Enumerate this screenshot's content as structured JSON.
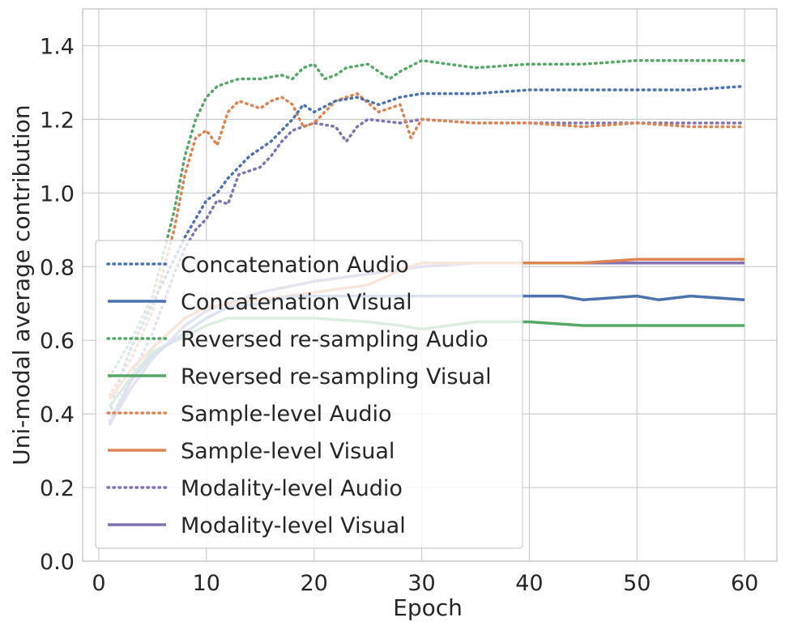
{
  "chart_data": {
    "type": "line",
    "title": "",
    "xlabel": "Epoch",
    "ylabel": "Uni-modal average contribution",
    "xlim": [
      -1.5,
      63
    ],
    "ylim": [
      0.0,
      1.5
    ],
    "xticks": [
      "0",
      "10",
      "20",
      "30",
      "40",
      "50",
      "60"
    ],
    "yticks": [
      "0.0",
      "0.2",
      "0.4",
      "0.6",
      "0.8",
      "1.0",
      "1.2",
      "1.4"
    ],
    "grid": true,
    "legend_position": "lower-left",
    "series": [
      {
        "name": "Concatenation Audio",
        "color": "#4c72b0",
        "style": "dotted",
        "x": [
          1,
          2,
          3,
          4,
          5,
          6,
          7,
          8,
          9,
          10,
          11,
          12,
          13,
          14,
          15,
          16,
          17,
          18,
          19,
          20,
          22,
          24,
          26,
          28,
          30,
          35,
          40,
          45,
          50,
          55,
          60
        ],
        "y": [
          0.4,
          0.5,
          0.58,
          0.64,
          0.7,
          0.76,
          0.82,
          0.88,
          0.93,
          0.98,
          1.0,
          1.04,
          1.07,
          1.1,
          1.12,
          1.14,
          1.17,
          1.2,
          1.24,
          1.22,
          1.25,
          1.26,
          1.24,
          1.26,
          1.27,
          1.27,
          1.28,
          1.28,
          1.28,
          1.28,
          1.29
        ]
      },
      {
        "name": "Concatenation Visual",
        "color": "#4c72b0",
        "style": "solid",
        "x": [
          1,
          3,
          5,
          8,
          10,
          12,
          15,
          18,
          20,
          25,
          30,
          35,
          40,
          43,
          45,
          50,
          52,
          55,
          60
        ],
        "y": [
          0.37,
          0.49,
          0.56,
          0.62,
          0.66,
          0.69,
          0.7,
          0.72,
          0.72,
          0.72,
          0.72,
          0.72,
          0.72,
          0.72,
          0.71,
          0.72,
          0.71,
          0.72,
          0.71
        ]
      },
      {
        "name": "Reversed re-sampling Audio",
        "color": "#55a868",
        "style": "dotted",
        "x": [
          1,
          3,
          5,
          7,
          8,
          9,
          10,
          11,
          12,
          13,
          15,
          17,
          18,
          19,
          20,
          21,
          22,
          23,
          25,
          27,
          28,
          30,
          35,
          40,
          45,
          50,
          55,
          58,
          60
        ],
        "y": [
          0.5,
          0.6,
          0.72,
          0.95,
          1.1,
          1.2,
          1.26,
          1.29,
          1.3,
          1.31,
          1.31,
          1.32,
          1.31,
          1.34,
          1.35,
          1.31,
          1.32,
          1.34,
          1.35,
          1.31,
          1.33,
          1.36,
          1.34,
          1.35,
          1.35,
          1.36,
          1.36,
          1.36,
          1.36
        ]
      },
      {
        "name": "Reversed re-sampling Visual",
        "color": "#55a868",
        "style": "solid",
        "x": [
          1,
          3,
          5,
          8,
          10,
          12,
          15,
          18,
          20,
          25,
          28,
          30,
          35,
          40,
          45,
          50,
          55,
          58,
          60
        ],
        "y": [
          0.42,
          0.5,
          0.57,
          0.61,
          0.64,
          0.66,
          0.66,
          0.66,
          0.66,
          0.65,
          0.64,
          0.63,
          0.65,
          0.65,
          0.64,
          0.64,
          0.64,
          0.64,
          0.64
        ]
      },
      {
        "name": "Sample-level Audio",
        "color": "#dd8452",
        "style": "dotted",
        "x": [
          1,
          3,
          5,
          7,
          8,
          9,
          10,
          11,
          12,
          13,
          15,
          16,
          17,
          18,
          19,
          20,
          22,
          24,
          26,
          28,
          29,
          30,
          35,
          40,
          45,
          50,
          55,
          60
        ],
        "y": [
          0.45,
          0.55,
          0.68,
          0.9,
          1.05,
          1.15,
          1.17,
          1.13,
          1.22,
          1.25,
          1.23,
          1.25,
          1.26,
          1.24,
          1.18,
          1.19,
          1.25,
          1.27,
          1.22,
          1.24,
          1.15,
          1.2,
          1.19,
          1.19,
          1.18,
          1.19,
          1.18,
          1.18
        ]
      },
      {
        "name": "Sample-level Visual",
        "color": "#dd8452",
        "style": "solid",
        "x": [
          1,
          3,
          5,
          8,
          10,
          15,
          20,
          25,
          28,
          30,
          35,
          40,
          45,
          50,
          55,
          58,
          60
        ],
        "y": [
          0.44,
          0.52,
          0.58,
          0.66,
          0.69,
          0.71,
          0.73,
          0.75,
          0.79,
          0.81,
          0.81,
          0.81,
          0.81,
          0.82,
          0.82,
          0.82,
          0.82
        ]
      },
      {
        "name": "Modality-level Audio",
        "color": "#8172b3",
        "style": "dotted",
        "x": [
          1,
          3,
          5,
          7,
          8,
          9,
          10,
          11,
          12,
          13,
          15,
          16,
          17,
          18,
          19,
          20,
          22,
          23,
          24,
          25,
          28,
          30,
          35,
          40,
          45,
          50,
          55,
          60
        ],
        "y": [
          0.38,
          0.5,
          0.62,
          0.78,
          0.85,
          0.9,
          0.93,
          0.98,
          0.97,
          1.05,
          1.07,
          1.1,
          1.14,
          1.17,
          1.18,
          1.19,
          1.18,
          1.14,
          1.18,
          1.2,
          1.19,
          1.2,
          1.19,
          1.19,
          1.19,
          1.19,
          1.19,
          1.19
        ]
      },
      {
        "name": "Modality-level Visual",
        "color": "#8172b3",
        "style": "solid",
        "x": [
          1,
          3,
          5,
          8,
          10,
          15,
          20,
          25,
          30,
          35,
          40,
          45,
          50,
          55,
          60
        ],
        "y": [
          0.37,
          0.47,
          0.55,
          0.64,
          0.68,
          0.73,
          0.76,
          0.78,
          0.8,
          0.81,
          0.81,
          0.81,
          0.81,
          0.81,
          0.81
        ]
      }
    ]
  }
}
